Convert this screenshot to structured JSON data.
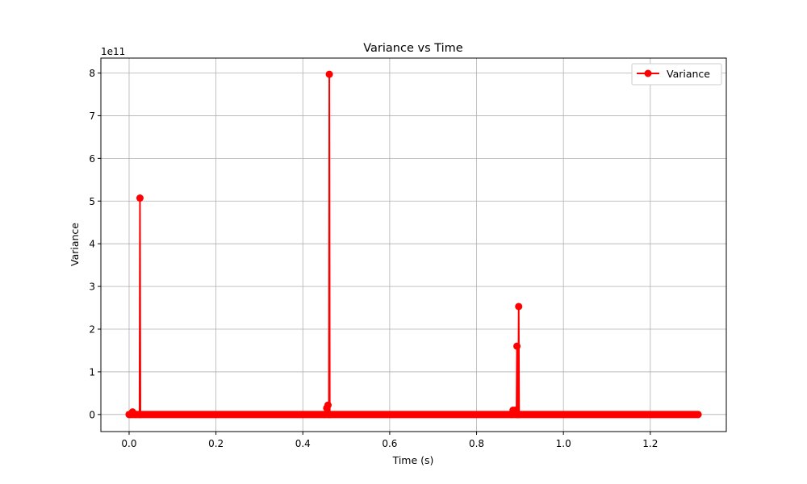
{
  "chart_data": {
    "type": "line",
    "title": "Variance vs Time",
    "xlabel": "Time (s)",
    "ylabel": "Variance",
    "y_multiplier_label": "1e11",
    "xlim": [
      -0.065,
      1.375
    ],
    "ylim": [
      -0.4,
      8.35
    ],
    "x_ticks": [
      0.0,
      0.2,
      0.4,
      0.6,
      0.8,
      1.0,
      1.2
    ],
    "x_tick_labels": [
      "0.0",
      "0.2",
      "0.4",
      "0.6",
      "0.8",
      "1.0",
      "1.2"
    ],
    "y_ticks": [
      0,
      1,
      2,
      3,
      4,
      5,
      6,
      7,
      8
    ],
    "y_tick_labels": [
      "0",
      "1",
      "2",
      "3",
      "4",
      "5",
      "6",
      "7",
      "8"
    ],
    "grid": true,
    "legend_position": "top-right",
    "baseline": {
      "x_start": 0.0,
      "x_end": 1.31,
      "y": 0.0
    },
    "series": [
      {
        "name": "Variance",
        "color": "#ff0000",
        "marker": "circle",
        "points": [
          {
            "x": 0.0,
            "y": 0.0
          },
          {
            "x": 0.008,
            "y": 0.06
          },
          {
            "x": 0.015,
            "y": 0.0
          },
          {
            "x": 0.024,
            "y": 0.0
          },
          {
            "x": 0.025,
            "y": 5.07
          },
          {
            "x": 0.026,
            "y": 0.0
          },
          {
            "x": 0.45,
            "y": 0.0
          },
          {
            "x": 0.455,
            "y": 0.15
          },
          {
            "x": 0.458,
            "y": 0.22
          },
          {
            "x": 0.46,
            "y": 0.0
          },
          {
            "x": 0.461,
            "y": 7.97
          },
          {
            "x": 0.462,
            "y": 0.0
          },
          {
            "x": 0.88,
            "y": 0.0
          },
          {
            "x": 0.884,
            "y": 0.1
          },
          {
            "x": 0.889,
            "y": 0.1
          },
          {
            "x": 0.892,
            "y": 0.0
          },
          {
            "x": 0.893,
            "y": 1.6
          },
          {
            "x": 0.894,
            "y": 0.0
          },
          {
            "x": 0.896,
            "y": 0.0
          },
          {
            "x": 0.897,
            "y": 2.53
          },
          {
            "x": 0.898,
            "y": 0.0
          },
          {
            "x": 1.31,
            "y": 0.0
          }
        ]
      }
    ]
  }
}
